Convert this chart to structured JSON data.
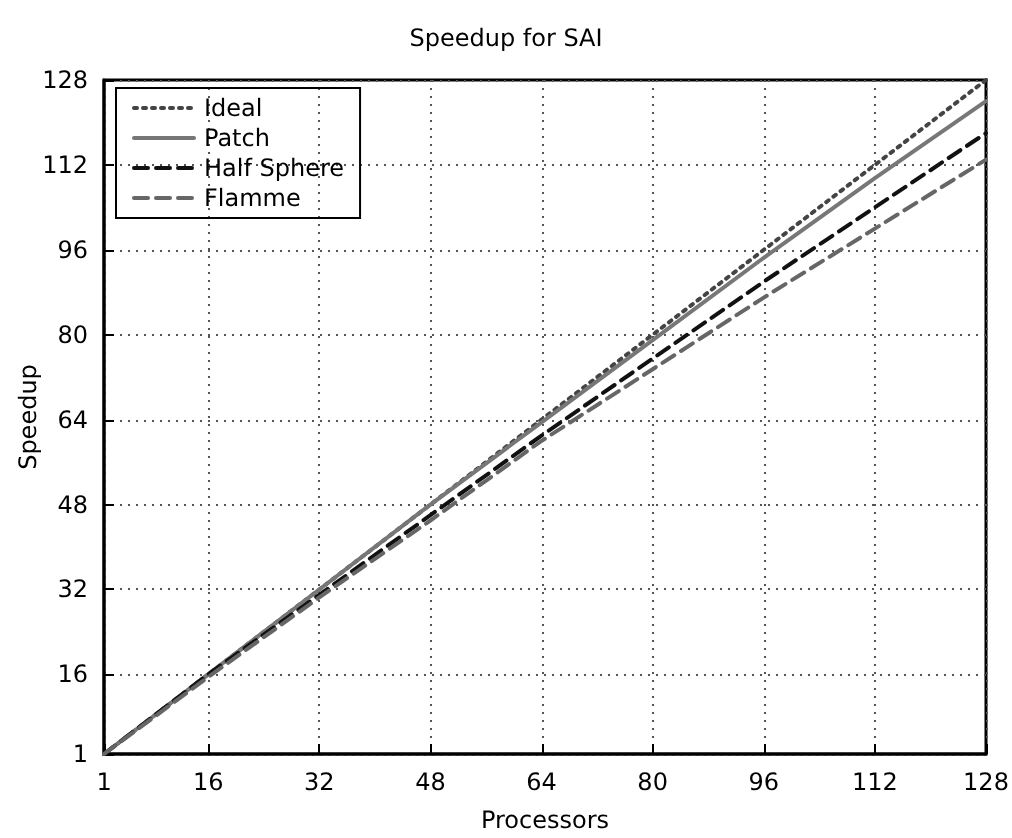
{
  "chart_data": {
    "type": "line",
    "title": "Speedup for SAI",
    "xlabel": "Processors",
    "ylabel": "Speedup",
    "x": [
      1,
      16,
      32,
      48,
      64,
      80,
      96,
      112,
      128
    ],
    "series": [
      {
        "name": "Ideal",
        "color": "#444444",
        "line_style": "dotted",
        "values": [
          1,
          16,
          32,
          48,
          64,
          80,
          96,
          112,
          128
        ]
      },
      {
        "name": "Patch",
        "color": "#777777",
        "line_style": "solid",
        "values": [
          1,
          16,
          32,
          48,
          63.5,
          79,
          94.5,
          109.5,
          124
        ]
      },
      {
        "name": "Half Sphere",
        "color": "#111111",
        "line_style": "dashed",
        "values": [
          1,
          16,
          31,
          46,
          61,
          75.5,
          90,
          104,
          118
        ]
      },
      {
        "name": "Flamme",
        "color": "#666666",
        "line_style": "dashed",
        "values": [
          1,
          15.5,
          30.5,
          45,
          60,
          73.5,
          87,
          100,
          113
        ]
      }
    ],
    "xlim": [
      1,
      128
    ],
    "xticks": [
      1,
      16,
      32,
      48,
      64,
      80,
      96,
      112,
      128
    ],
    "ylim": [
      1,
      128
    ],
    "yticks": [
      1,
      16,
      32,
      48,
      64,
      80,
      96,
      112,
      128
    ],
    "grid": true,
    "legend": "top left",
    "marker": "none"
  }
}
